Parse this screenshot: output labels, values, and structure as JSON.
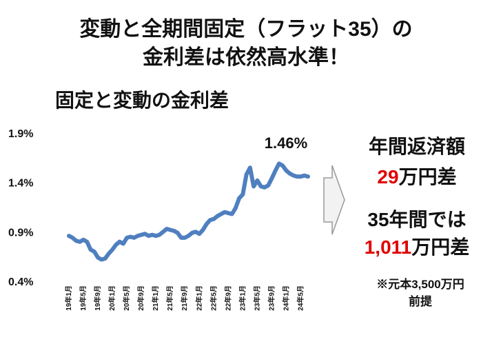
{
  "header": {
    "title_lines": [
      "変動と全期間固定（フラット35）の",
      "金利差は依然高水準！"
    ]
  },
  "chart_data": {
    "type": "line",
    "title": "固定と変動の金利差",
    "categories": [
      "19年1月",
      null,
      null,
      null,
      "19年5月",
      null,
      null,
      null,
      "19年9月",
      null,
      null,
      null,
      "20年1月",
      null,
      null,
      null,
      "20年5月",
      null,
      null,
      null,
      "20年9月",
      null,
      null,
      null,
      "21年1月",
      null,
      null,
      null,
      "21年5月",
      null,
      null,
      null,
      "21年9月",
      null,
      null,
      null,
      "22年1月",
      null,
      null,
      null,
      "22年5月",
      null,
      null,
      null,
      "22年9月",
      null,
      null,
      null,
      "23年1月",
      null,
      null,
      null,
      "23年5月",
      null,
      null,
      null,
      "23年9月",
      null,
      null,
      null,
      "24年1月",
      null,
      null,
      null,
      "24年5月",
      null,
      null
    ],
    "series": [
      {
        "name": "金利差",
        "color": "#4f7fbf",
        "values": [
          0.86,
          0.84,
          0.81,
          0.8,
          0.82,
          0.8,
          0.72,
          0.7,
          0.64,
          0.62,
          0.63,
          0.68,
          0.72,
          0.77,
          0.8,
          0.78,
          0.84,
          0.85,
          0.84,
          0.86,
          0.87,
          0.88,
          0.86,
          0.87,
          0.86,
          0.87,
          0.9,
          0.93,
          0.92,
          0.91,
          0.89,
          0.84,
          0.84,
          0.86,
          0.89,
          0.9,
          0.88,
          0.92,
          0.98,
          1.02,
          1.03,
          1.06,
          1.08,
          1.1,
          1.09,
          1.08,
          1.14,
          1.24,
          1.28,
          1.48,
          1.55,
          1.36,
          1.42,
          1.36,
          1.35,
          1.37,
          1.44,
          1.52,
          1.59,
          1.57,
          1.52,
          1.49,
          1.47,
          1.46,
          1.46,
          1.47,
          1.46
        ]
      }
    ],
    "annotation": "1.46%",
    "ylim": [
      0.4,
      1.9
    ],
    "yticks": [
      {
        "value": 0.4,
        "label": "0.4%"
      },
      {
        "value": 0.9,
        "label": "0.9%"
      },
      {
        "value": 1.4,
        "label": "1.4%"
      },
      {
        "value": 1.9,
        "label": "1.9%"
      }
    ],
    "grid": false
  },
  "side": {
    "line1": "年間返済額",
    "line2_red": "29",
    "line2_rest": "万円差",
    "line3": "35年間では",
    "line4_red": "1,011",
    "line4_rest": "万円差",
    "note_lines": [
      "※元本3,500万円",
      "前提"
    ]
  }
}
